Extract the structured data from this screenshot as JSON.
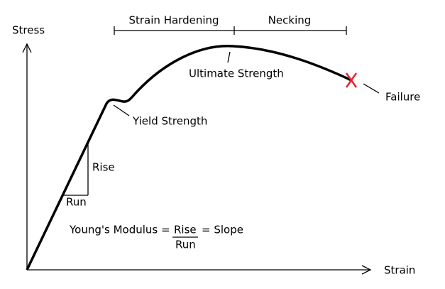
{
  "axes": {
    "y_label": "Stress",
    "x_label": "Strain"
  },
  "regions": [
    {
      "label": "Strain Hardening"
    },
    {
      "label": "Necking"
    }
  ],
  "annotations": {
    "ultimate": "Ultimate Strength",
    "failure": "Failure",
    "yield": "Yield Strength",
    "rise": "Rise",
    "run": "Run"
  },
  "formula": {
    "prefix": "Young's Modulus =",
    "numerator": "Rise",
    "suffix": "= Slope",
    "denominator": "Run"
  }
}
